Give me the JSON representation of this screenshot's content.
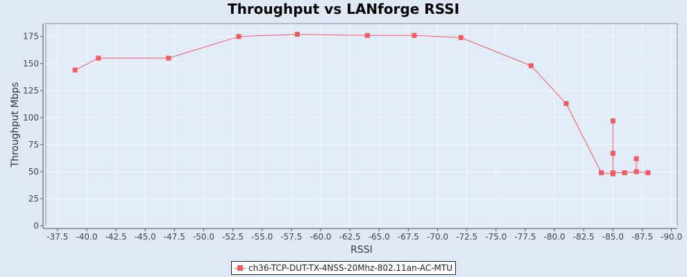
{
  "chart_data": {
    "type": "line",
    "title": "Throughput vs LANforge RSSI",
    "xlabel": "RSSI",
    "ylabel": "Throughput Mbps",
    "xlim": [
      -36.5,
      -90.5
    ],
    "ylim": [
      0,
      187
    ],
    "x_reversed": true,
    "grid": true,
    "legend_position": "bottom",
    "x_ticks": [
      -37.5,
      -40.0,
      -42.5,
      -45.0,
      -47.5,
      -50.0,
      -52.5,
      -55.0,
      -57.5,
      -60.0,
      -62.5,
      -65.0,
      -67.5,
      -70.0,
      -72.5,
      -75.0,
      -77.5,
      -80.0,
      -82.5,
      -85.0,
      -87.5,
      -90.0
    ],
    "x_tick_labels": [
      "-37.5",
      "-40.0",
      "-42.5",
      "-45.0",
      "-47.5",
      "-50.0",
      "-52.5",
      "-55.0",
      "-57.5",
      "-60.0",
      "-62.5",
      "-65.0",
      "-67.5",
      "-70.0",
      "-72.5",
      "-75.0",
      "-77.5",
      "-80.0",
      "-82.5",
      "-85.0",
      "-87.5",
      "-90.0"
    ],
    "y_ticks": [
      0,
      25,
      50,
      75,
      100,
      125,
      150,
      175
    ],
    "y_tick_labels": [
      "0",
      "25",
      "50",
      "75",
      "100",
      "125",
      "150",
      "175"
    ],
    "series": [
      {
        "name": "ch36-TCP-DUT-TX-4NSS-20Mhz-802.11an-AC-MTU",
        "color": "#f25a5f",
        "marker": "square",
        "points": [
          {
            "x": -39,
            "y": 144
          },
          {
            "x": -41,
            "y": 155
          },
          {
            "x": -47,
            "y": 155
          },
          {
            "x": -53,
            "y": 175
          },
          {
            "x": -58,
            "y": 177
          },
          {
            "x": -64,
            "y": 176
          },
          {
            "x": -68,
            "y": 176
          },
          {
            "x": -72,
            "y": 174
          },
          {
            "x": -78,
            "y": 148
          },
          {
            "x": -81,
            "y": 113
          },
          {
            "x": -84,
            "y": 49
          },
          {
            "x": -85,
            "y": 48
          },
          {
            "x": -85,
            "y": 97
          },
          {
            "x": -85,
            "y": 67
          },
          {
            "x": -85,
            "y": 49
          },
          {
            "x": -86,
            "y": 49
          },
          {
            "x": -87,
            "y": 50
          },
          {
            "x": -87,
            "y": 62
          },
          {
            "x": -87,
            "y": 50
          },
          {
            "x": -88,
            "y": 49
          }
        ]
      }
    ]
  }
}
